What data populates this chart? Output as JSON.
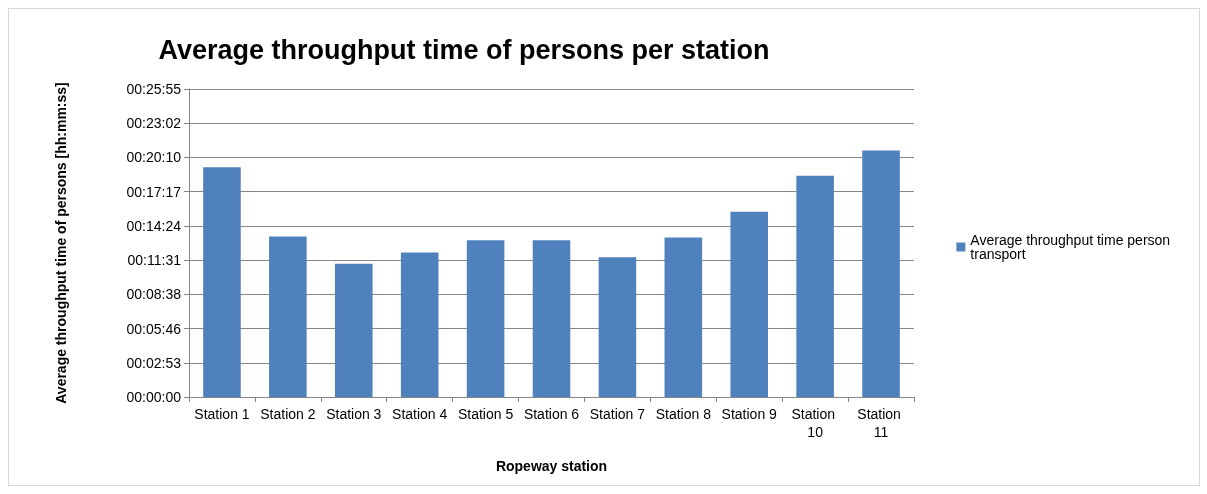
{
  "chart_data": {
    "type": "bar",
    "title": "Average throughput time of persons per station",
    "xlabel": "Ropeway station",
    "ylabel": "Average throughput time of persons [hh:mm:ss]",
    "categories": [
      "Station 1",
      "Station 2",
      "Station 3",
      "Station 4",
      "Station 5",
      "Station 6",
      "Station 7",
      "Station 8",
      "Station 9",
      "Station 10",
      "Station 11"
    ],
    "series": [
      {
        "name": "Average throughput time person transport",
        "color": "#4f81bd",
        "values": [
          1160,
          811,
          673,
          730,
          792,
          792,
          706,
          806,
          935,
          1117,
          1245
        ]
      }
    ],
    "ylim": [
      0,
      1555.2
    ],
    "yticks": [
      {
        "value": 0,
        "label": "00:00:00"
      },
      {
        "value": 172.8,
        "label": "00:02:53"
      },
      {
        "value": 345.6,
        "label": "00:05:46"
      },
      {
        "value": 518.4,
        "label": "00:08:38"
      },
      {
        "value": 691.2,
        "label": "00:11:31"
      },
      {
        "value": 864,
        "label": "00:14:24"
      },
      {
        "value": 1036.8,
        "label": "00:17:17"
      },
      {
        "value": 1209.6,
        "label": "00:20:10"
      },
      {
        "value": 1382.4,
        "label": "00:23:02"
      },
      {
        "value": 1555.2,
        "label": "00:25:55"
      }
    ],
    "grid": "y",
    "legend": "right"
  }
}
